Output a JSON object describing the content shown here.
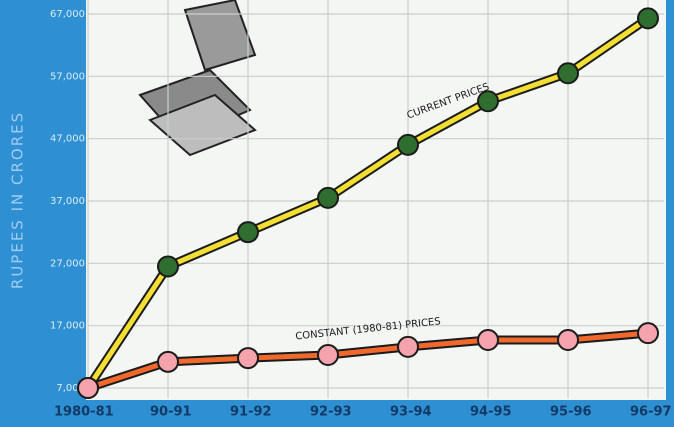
{
  "chart_data": {
    "type": "line",
    "y_label": "RUPEES IN CRORES",
    "categories": [
      "1980-81",
      "90-91",
      "91-92",
      "92-93",
      "93-94",
      "94-95",
      "95-96",
      "96-97"
    ],
    "series": [
      {
        "name": "CURRENT PRICES",
        "color": "#f3df33",
        "marker_color": "#2f6e2e",
        "values": [
          7000,
          26500,
          32000,
          37500,
          46000,
          53000,
          57500,
          66300
        ]
      },
      {
        "name": "CONSTANT (1980-81) PRICES",
        "color": "#f0682c",
        "marker_color": "#f5a3ad",
        "values": [
          7000,
          11200,
          11800,
          12300,
          13600,
          14700,
          14700,
          15800
        ]
      }
    ],
    "ylim": [
      7000,
      67000
    ],
    "yticks": [
      {
        "value": 7000,
        "label": "7,000"
      },
      {
        "value": 17000,
        "label": "17,000"
      },
      {
        "value": 27000,
        "label": "27,000"
      },
      {
        "value": 37000,
        "label": "37,000"
      },
      {
        "value": 47000,
        "label": "47,000"
      },
      {
        "value": 57000,
        "label": "57,000"
      },
      {
        "value": 67000,
        "label": "67,000"
      }
    ],
    "grid": true
  }
}
